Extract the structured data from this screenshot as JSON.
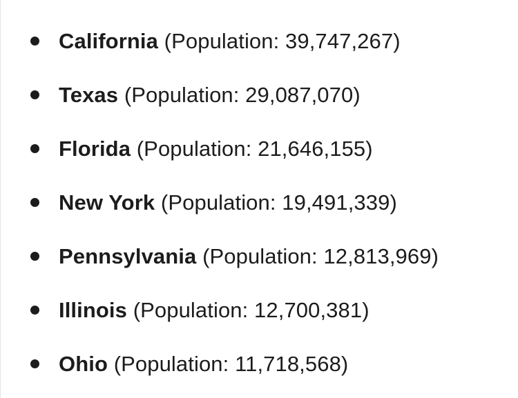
{
  "states": [
    {
      "name": "California",
      "population_text": " (Population: 39,747,267)"
    },
    {
      "name": "Texas",
      "population_text": " (Population: 29,087,070)"
    },
    {
      "name": "Florida",
      "population_text": " (Population: 21,646,155)"
    },
    {
      "name": "New York",
      "population_text": " (Population: 19,491,339)"
    },
    {
      "name": "Pennsylvania",
      "population_text": " (Population: 12,813,969)"
    },
    {
      "name": "Illinois",
      "population_text": " (Population: 12,700,381)"
    },
    {
      "name": "Ohio",
      "population_text": " (Population: 11,718,568)"
    }
  ]
}
